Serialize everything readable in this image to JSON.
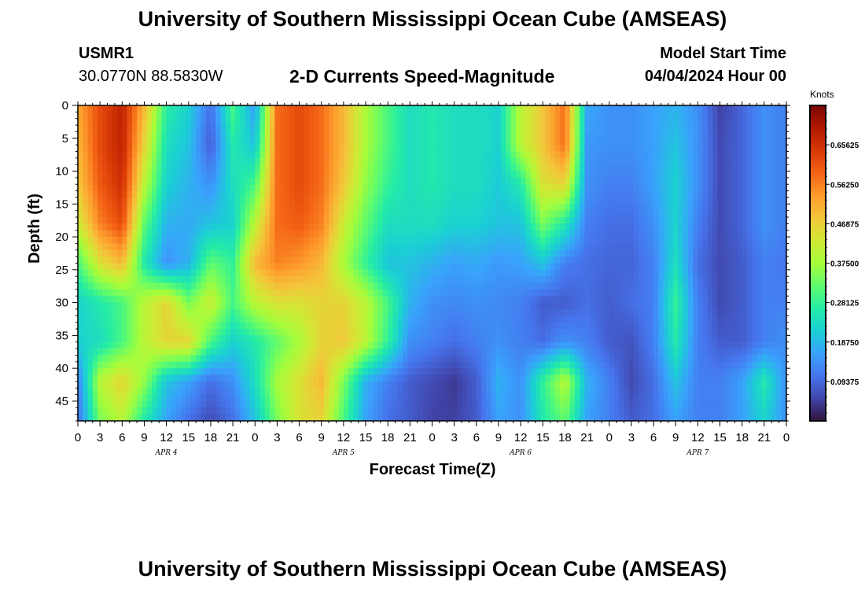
{
  "header": {
    "title_top": "University of Southern Mississippi Ocean Cube (AMSEAS)",
    "title_bottom": "University of Southern Mississippi Ocean Cube (AMSEAS)",
    "station": "USMR1",
    "coords": "30.0770N  88.5830W",
    "start_label": "Model Start Time",
    "start_value": "04/04/2024 Hour 00"
  },
  "colors": {
    "colormap": [
      "#30123b",
      "#4145ab",
      "#4675ed",
      "#39a2fc",
      "#1bcfd4",
      "#24eca6",
      "#61fc6c",
      "#a4fc3b",
      "#d1e834",
      "#f3c63a",
      "#fe9b2d",
      "#f36315",
      "#d93806",
      "#b11901",
      "#7a0402"
    ]
  },
  "chart_data": {
    "type": "heatmap",
    "title": "2-D Currents Speed-Magnitude",
    "xlabel": "Forecast Time(Z)",
    "ylabel": "Depth (ft)",
    "colorbar_label": "Knots",
    "x_range_hours": [
      0,
      96
    ],
    "y_range_ft": [
      0,
      48
    ],
    "value_range_knots": [
      0.0,
      0.75
    ],
    "x_tick_labels": [
      "0",
      "3",
      "6",
      "9",
      "12",
      "15",
      "18",
      "21",
      "0",
      "3",
      "6",
      "9",
      "12",
      "15",
      "18",
      "21",
      "0",
      "3",
      "6",
      "9",
      "12",
      "15",
      "18",
      "21",
      "0",
      "3",
      "6",
      "9",
      "12",
      "15",
      "18",
      "21",
      "0"
    ],
    "date_labels": [
      {
        "label": "APR 4",
        "hour": 12
      },
      {
        "label": "APR 5",
        "hour": 36
      },
      {
        "label": "APR 6",
        "hour": 60
      },
      {
        "label": "APR 7",
        "hour": 84
      }
    ],
    "y_ticks": [
      0,
      5,
      10,
      15,
      20,
      25,
      30,
      35,
      40,
      45
    ],
    "colorbar_ticks": [
      "0.65625",
      "0.56250",
      "0.46875",
      "0.37500",
      "0.28125",
      "0.18750",
      "0.09375"
    ],
    "colorbar_tick_values": [
      0.65625,
      0.5625,
      0.46875,
      0.375,
      0.28125,
      0.1875,
      0.09375
    ],
    "depths_ft": [
      0,
      6,
      12,
      18,
      24,
      30,
      36,
      42,
      48
    ],
    "hours": [
      0,
      3,
      6,
      9,
      12,
      15,
      18,
      21,
      24,
      27,
      30,
      33,
      36,
      39,
      42,
      45,
      48,
      51,
      54,
      57,
      60,
      63,
      66,
      69,
      72,
      75,
      78,
      81,
      84,
      87,
      90,
      93,
      96
    ],
    "values": [
      [
        0.52,
        0.62,
        0.68,
        0.5,
        0.27,
        0.22,
        0.1,
        0.3,
        0.15,
        0.58,
        0.62,
        0.58,
        0.5,
        0.38,
        0.3,
        0.24,
        0.26,
        0.24,
        0.24,
        0.22,
        0.4,
        0.48,
        0.58,
        0.17,
        0.14,
        0.14,
        0.16,
        0.18,
        0.14,
        0.05,
        0.09,
        0.14,
        0.12
      ],
      [
        0.5,
        0.62,
        0.68,
        0.46,
        0.24,
        0.2,
        0.08,
        0.26,
        0.2,
        0.58,
        0.62,
        0.58,
        0.5,
        0.38,
        0.3,
        0.24,
        0.26,
        0.24,
        0.24,
        0.22,
        0.4,
        0.48,
        0.58,
        0.15,
        0.14,
        0.14,
        0.16,
        0.2,
        0.14,
        0.06,
        0.09,
        0.14,
        0.12
      ],
      [
        0.48,
        0.6,
        0.66,
        0.4,
        0.22,
        0.18,
        0.14,
        0.24,
        0.3,
        0.58,
        0.62,
        0.58,
        0.48,
        0.36,
        0.28,
        0.24,
        0.26,
        0.24,
        0.24,
        0.21,
        0.26,
        0.44,
        0.46,
        0.14,
        0.12,
        0.12,
        0.16,
        0.22,
        0.14,
        0.06,
        0.09,
        0.14,
        0.12
      ],
      [
        0.42,
        0.56,
        0.62,
        0.32,
        0.18,
        0.17,
        0.2,
        0.22,
        0.4,
        0.58,
        0.6,
        0.56,
        0.42,
        0.32,
        0.24,
        0.24,
        0.24,
        0.22,
        0.22,
        0.2,
        0.2,
        0.34,
        0.26,
        0.12,
        0.1,
        0.1,
        0.14,
        0.22,
        0.12,
        0.06,
        0.09,
        0.14,
        0.12
      ],
      [
        0.3,
        0.44,
        0.5,
        0.26,
        0.14,
        0.18,
        0.32,
        0.28,
        0.5,
        0.56,
        0.54,
        0.5,
        0.38,
        0.28,
        0.2,
        0.2,
        0.18,
        0.16,
        0.17,
        0.15,
        0.16,
        0.2,
        0.12,
        0.1,
        0.09,
        0.09,
        0.12,
        0.24,
        0.1,
        0.06,
        0.08,
        0.12,
        0.11
      ],
      [
        0.22,
        0.26,
        0.3,
        0.4,
        0.46,
        0.34,
        0.42,
        0.3,
        0.4,
        0.44,
        0.44,
        0.46,
        0.46,
        0.4,
        0.3,
        0.18,
        0.14,
        0.13,
        0.14,
        0.13,
        0.12,
        0.08,
        0.08,
        0.1,
        0.08,
        0.1,
        0.12,
        0.28,
        0.12,
        0.06,
        0.08,
        0.12,
        0.12
      ],
      [
        0.22,
        0.24,
        0.3,
        0.4,
        0.46,
        0.46,
        0.3,
        0.22,
        0.26,
        0.32,
        0.38,
        0.46,
        0.48,
        0.4,
        0.28,
        0.14,
        0.12,
        0.1,
        0.12,
        0.14,
        0.12,
        0.1,
        0.14,
        0.12,
        0.08,
        0.07,
        0.12,
        0.26,
        0.12,
        0.08,
        0.08,
        0.12,
        0.14
      ],
      [
        0.12,
        0.4,
        0.46,
        0.36,
        0.2,
        0.16,
        0.1,
        0.14,
        0.24,
        0.38,
        0.44,
        0.5,
        0.34,
        0.18,
        0.12,
        0.08,
        0.06,
        0.04,
        0.08,
        0.18,
        0.14,
        0.28,
        0.4,
        0.18,
        0.12,
        0.06,
        0.1,
        0.2,
        0.12,
        0.12,
        0.16,
        0.26,
        0.14
      ],
      [
        0.1,
        0.34,
        0.4,
        0.26,
        0.16,
        0.1,
        0.06,
        0.1,
        0.2,
        0.34,
        0.44,
        0.46,
        0.3,
        0.16,
        0.1,
        0.08,
        0.05,
        0.05,
        0.08,
        0.16,
        0.14,
        0.26,
        0.32,
        0.16,
        0.12,
        0.08,
        0.1,
        0.16,
        0.12,
        0.12,
        0.16,
        0.22,
        0.14
      ]
    ]
  }
}
